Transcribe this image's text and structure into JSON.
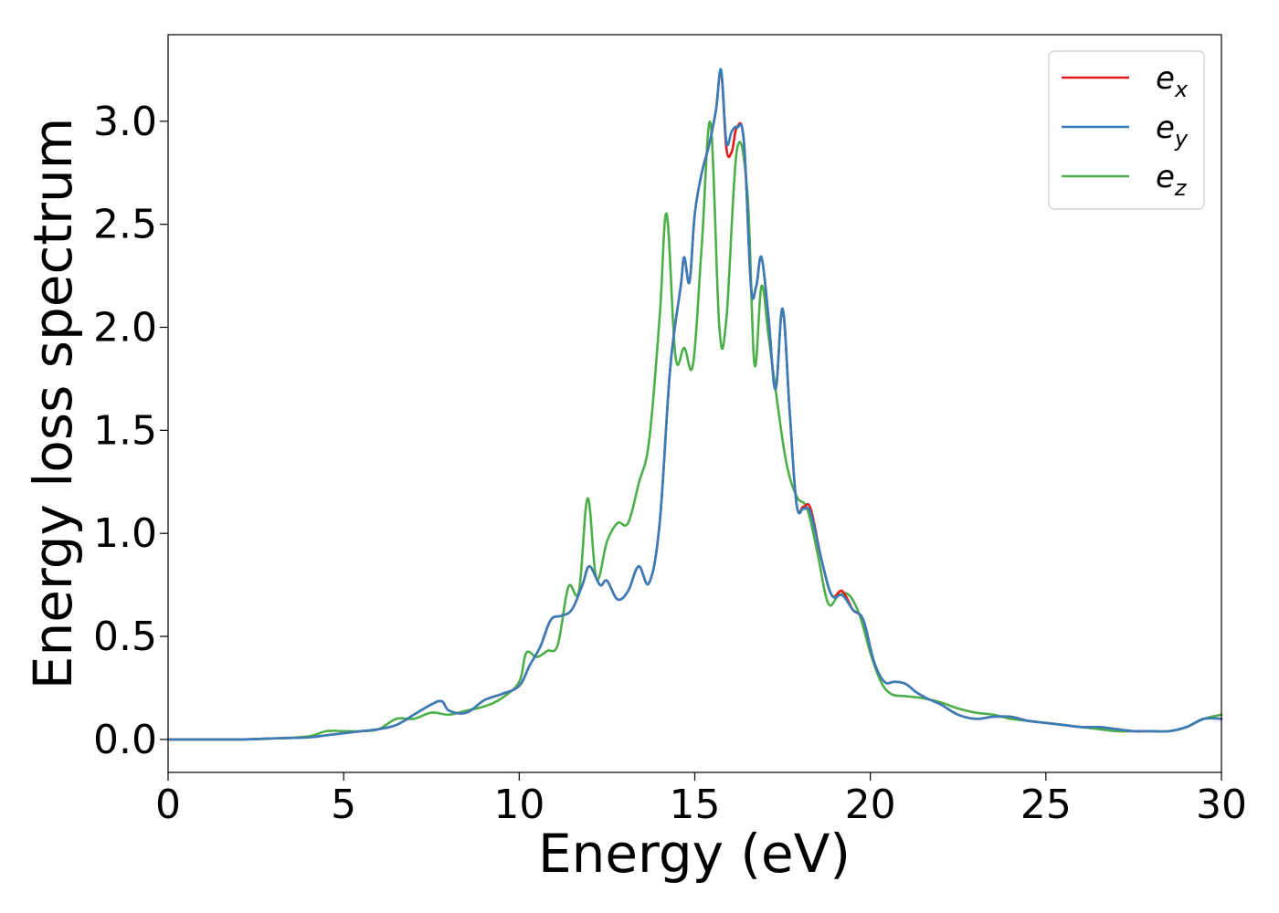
{
  "chart_data": {
    "type": "line",
    "xlabel": "Energy (eV)",
    "ylabel": "Energy loss spectrum",
    "xlim": [
      0,
      30
    ],
    "ylim": [
      -0.16,
      3.42
    ],
    "xticks": [
      "0",
      "5",
      "10",
      "15",
      "20",
      "25",
      "30"
    ],
    "xtick_values": [
      0,
      5,
      10,
      15,
      20,
      25,
      30
    ],
    "yticks": [
      "0.0",
      "0.5",
      "1.0",
      "1.5",
      "2.0",
      "2.5",
      "3.0"
    ],
    "ytick_values": [
      0.0,
      0.5,
      1.0,
      1.5,
      2.0,
      2.5,
      3.0
    ],
    "grid": false,
    "legend_position": "top-right",
    "series": [
      {
        "name": "e_x",
        "legend_base": "e",
        "legend_sub": "x",
        "color": "#e41a1c",
        "x": [
          0,
          2,
          3,
          4,
          4.5,
          5,
          5.5,
          6,
          6.5,
          7,
          7.5,
          7.8,
          8.0,
          8.5,
          9,
          9.5,
          10,
          10.3,
          10.6,
          10.9,
          11.2,
          11.5,
          11.8,
          12.0,
          12.3,
          12.5,
          12.8,
          13.1,
          13.4,
          13.7,
          14.0,
          14.3,
          14.6,
          14.7,
          14.85,
          15.0,
          15.2,
          15.4,
          15.6,
          15.75,
          15.9,
          16.05,
          16.2,
          16.4,
          16.6,
          16.75,
          16.9,
          17.1,
          17.3,
          17.5,
          17.7,
          17.9,
          18.1,
          18.3,
          18.6,
          18.9,
          19.2,
          19.5,
          19.8,
          20.1,
          20.4,
          20.7,
          21.0,
          21.3,
          21.6,
          22.0,
          22.5,
          23.0,
          23.5,
          24.0,
          24.5,
          25.0,
          25.5,
          26.0,
          26.5,
          27.0,
          27.5,
          28.0,
          28.5,
          29.0,
          29.5,
          30.0
        ],
        "values": [
          0.0,
          0.0,
          0.005,
          0.01,
          0.02,
          0.03,
          0.04,
          0.05,
          0.07,
          0.12,
          0.17,
          0.185,
          0.14,
          0.13,
          0.19,
          0.22,
          0.26,
          0.36,
          0.45,
          0.58,
          0.6,
          0.63,
          0.75,
          0.84,
          0.75,
          0.77,
          0.68,
          0.72,
          0.84,
          0.76,
          1.05,
          1.8,
          2.2,
          2.34,
          2.22,
          2.55,
          2.75,
          2.88,
          3.05,
          3.24,
          2.87,
          2.85,
          2.97,
          2.9,
          2.2,
          2.2,
          2.34,
          2.05,
          1.7,
          2.09,
          1.6,
          1.14,
          1.13,
          1.12,
          0.88,
          0.7,
          0.72,
          0.63,
          0.58,
          0.38,
          0.28,
          0.28,
          0.27,
          0.23,
          0.2,
          0.17,
          0.12,
          0.1,
          0.11,
          0.11,
          0.09,
          0.08,
          0.07,
          0.06,
          0.06,
          0.05,
          0.04,
          0.04,
          0.04,
          0.06,
          0.1,
          0.1
        ]
      },
      {
        "name": "e_y",
        "legend_base": "e",
        "legend_sub": "y",
        "color": "#377eb8",
        "x": [
          0,
          2,
          3,
          4,
          4.5,
          5,
          5.5,
          6,
          6.5,
          7,
          7.5,
          7.8,
          8.0,
          8.5,
          9,
          9.5,
          10,
          10.3,
          10.6,
          10.9,
          11.2,
          11.5,
          11.8,
          12.0,
          12.3,
          12.5,
          12.8,
          13.1,
          13.4,
          13.7,
          14.0,
          14.3,
          14.6,
          14.7,
          14.85,
          15.0,
          15.2,
          15.4,
          15.6,
          15.75,
          15.9,
          16.05,
          16.2,
          16.4,
          16.6,
          16.75,
          16.9,
          17.1,
          17.3,
          17.5,
          17.7,
          17.9,
          18.1,
          18.3,
          18.6,
          18.9,
          19.2,
          19.5,
          19.8,
          20.1,
          20.4,
          20.7,
          21.0,
          21.3,
          21.6,
          22.0,
          22.5,
          23.0,
          23.5,
          24.0,
          24.5,
          25.0,
          25.5,
          26.0,
          26.5,
          27.0,
          27.5,
          28.0,
          28.5,
          29.0,
          29.5,
          30.0
        ],
        "values": [
          0.0,
          0.0,
          0.005,
          0.01,
          0.02,
          0.03,
          0.04,
          0.05,
          0.07,
          0.12,
          0.17,
          0.185,
          0.14,
          0.13,
          0.19,
          0.22,
          0.26,
          0.36,
          0.45,
          0.58,
          0.6,
          0.63,
          0.75,
          0.84,
          0.75,
          0.77,
          0.68,
          0.72,
          0.84,
          0.76,
          1.05,
          1.8,
          2.2,
          2.34,
          2.22,
          2.55,
          2.75,
          2.88,
          3.05,
          3.25,
          2.9,
          2.95,
          2.97,
          2.9,
          2.2,
          2.2,
          2.34,
          2.05,
          1.7,
          2.09,
          1.6,
          1.14,
          1.12,
          1.1,
          0.88,
          0.7,
          0.7,
          0.63,
          0.58,
          0.38,
          0.28,
          0.28,
          0.27,
          0.23,
          0.2,
          0.17,
          0.12,
          0.1,
          0.11,
          0.11,
          0.09,
          0.08,
          0.07,
          0.06,
          0.06,
          0.05,
          0.04,
          0.04,
          0.04,
          0.06,
          0.1,
          0.1
        ]
      },
      {
        "name": "e_z",
        "legend_base": "e",
        "legend_sub": "z",
        "color": "#4daf4a",
        "x": [
          0,
          2,
          3,
          4,
          4.5,
          5,
          5.5,
          6,
          6.5,
          7,
          7.5,
          8.0,
          8.5,
          9,
          9.5,
          10,
          10.2,
          10.5,
          10.8,
          11.1,
          11.4,
          11.7,
          11.95,
          12.2,
          12.5,
          12.8,
          13.1,
          13.4,
          13.7,
          14.0,
          14.2,
          14.45,
          14.7,
          14.95,
          15.2,
          15.45,
          15.7,
          15.9,
          16.2,
          16.5,
          16.7,
          16.9,
          17.1,
          17.3,
          17.6,
          17.9,
          18.2,
          18.5,
          18.8,
          19.1,
          19.4,
          19.7,
          20.0,
          20.3,
          20.6,
          21.0,
          21.5,
          22.0,
          22.5,
          23.0,
          23.5,
          24.0,
          24.5,
          25.0,
          25.5,
          26.0,
          26.5,
          27.0,
          27.5,
          28.0,
          28.5,
          29.0,
          29.5,
          30.0
        ],
        "values": [
          0.0,
          0.0,
          0.005,
          0.015,
          0.04,
          0.04,
          0.04,
          0.05,
          0.1,
          0.1,
          0.13,
          0.12,
          0.14,
          0.16,
          0.2,
          0.28,
          0.42,
          0.4,
          0.43,
          0.46,
          0.74,
          0.72,
          1.17,
          0.78,
          0.96,
          1.05,
          1.05,
          1.24,
          1.45,
          2.05,
          2.55,
          1.86,
          1.9,
          1.82,
          2.4,
          2.99,
          2.0,
          2.04,
          2.86,
          2.65,
          1.82,
          2.2,
          1.96,
          1.7,
          1.35,
          1.18,
          1.12,
          0.9,
          0.66,
          0.7,
          0.7,
          0.6,
          0.42,
          0.28,
          0.22,
          0.21,
          0.2,
          0.18,
          0.15,
          0.13,
          0.12,
          0.1,
          0.09,
          0.08,
          0.07,
          0.06,
          0.05,
          0.04,
          0.04,
          0.04,
          0.04,
          0.06,
          0.1,
          0.12
        ]
      }
    ]
  }
}
